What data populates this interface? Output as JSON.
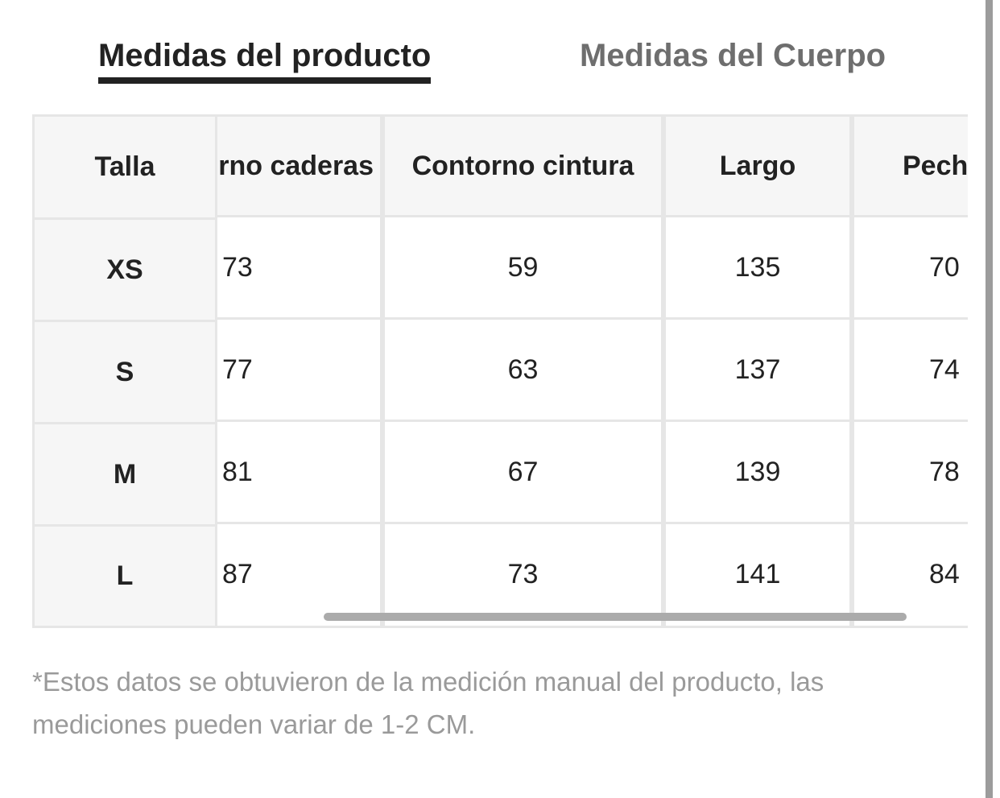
{
  "tabs": [
    {
      "label": "Medidas del producto",
      "active": true
    },
    {
      "label": "Medidas del Cuerpo",
      "active": false
    }
  ],
  "table": {
    "frozen_header": "Talla",
    "columns": [
      "Contorno caderas",
      "Contorno cintura",
      "Largo",
      "Pecho"
    ],
    "rows": [
      {
        "size": "XS",
        "values": [
          "73",
          "59",
          "135",
          "70"
        ]
      },
      {
        "size": "S",
        "values": [
          "77",
          "63",
          "137",
          "74"
        ]
      },
      {
        "size": "M",
        "values": [
          "81",
          "67",
          "139",
          "78"
        ]
      },
      {
        "size": "L",
        "values": [
          "87",
          "73",
          "141",
          "84"
        ]
      }
    ]
  },
  "note": "*Estos datos se obtuvieron de la medición manual del producto, las mediciones pueden variar de 1-2 CM.",
  "colors": {
    "active_tab": "#222222",
    "inactive_tab": "#6e6e6e",
    "header_bg": "#f6f6f6",
    "grid_line": "#e6e6e6",
    "note_text": "#9a9a9a",
    "scrollbar": "#ababab"
  }
}
